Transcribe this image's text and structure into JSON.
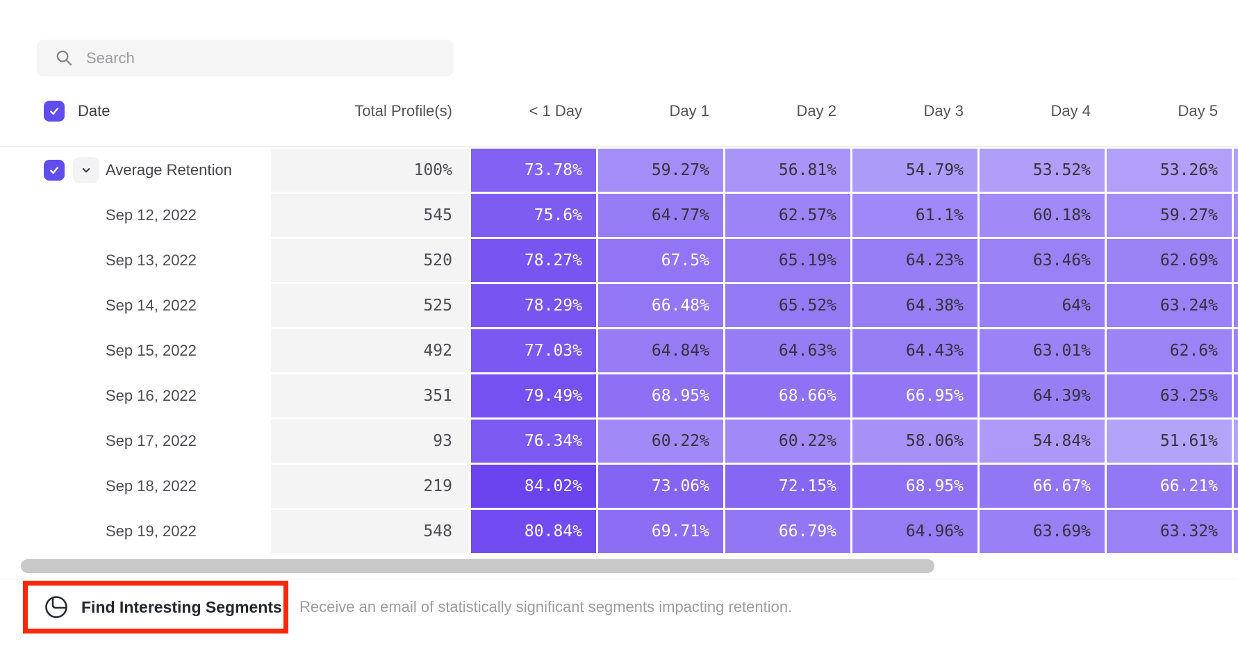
{
  "search": {
    "placeholder": "Search"
  },
  "table": {
    "date_header": "Date",
    "columns": [
      "Total Profile(s)",
      "< 1 Day",
      "Day 1",
      "Day 2",
      "Day 3",
      "Day 4",
      "Day 5"
    ],
    "rows": [
      {
        "label": "Average Retention",
        "is_average": true,
        "total": "100%",
        "values": [
          73.78,
          59.27,
          56.81,
          54.79,
          53.52,
          53.26
        ]
      },
      {
        "label": "Sep 12, 2022",
        "is_average": false,
        "total": "545",
        "values": [
          75.6,
          64.77,
          62.57,
          61.1,
          60.18,
          59.27
        ]
      },
      {
        "label": "Sep 13, 2022",
        "is_average": false,
        "total": "520",
        "values": [
          78.27,
          67.5,
          65.19,
          64.23,
          63.46,
          62.69
        ]
      },
      {
        "label": "Sep 14, 2022",
        "is_average": false,
        "total": "525",
        "values": [
          78.29,
          66.48,
          65.52,
          64.38,
          64,
          63.24
        ]
      },
      {
        "label": "Sep 15, 2022",
        "is_average": false,
        "total": "492",
        "values": [
          77.03,
          64.84,
          64.63,
          64.43,
          63.01,
          62.6
        ]
      },
      {
        "label": "Sep 16, 2022",
        "is_average": false,
        "total": "351",
        "values": [
          79.49,
          68.95,
          68.66,
          66.95,
          64.39,
          63.25
        ]
      },
      {
        "label": "Sep 17, 2022",
        "is_average": false,
        "total": "93",
        "values": [
          76.34,
          60.22,
          60.22,
          58.06,
          54.84,
          51.61
        ]
      },
      {
        "label": "Sep 18, 2022",
        "is_average": false,
        "total": "219",
        "values": [
          84.02,
          73.06,
          72.15,
          68.95,
          66.67,
          66.21
        ]
      },
      {
        "label": "Sep 19, 2022",
        "is_average": false,
        "total": "548",
        "values": [
          80.84,
          69.71,
          66.79,
          64.96,
          63.69,
          63.32
        ]
      }
    ]
  },
  "footer": {
    "button_label": "Find Interesting Segments",
    "description": "Receive an email of statistically significant segments impacting retention."
  },
  "icons": {
    "search": "magnifier",
    "select_checkbox": "check",
    "expand": "chevron-down",
    "find_segments": "circle-segment"
  },
  "colors": {
    "accent_purple": "#5f4dee",
    "cell_scale_light": "#b8a9fa",
    "cell_scale_dark": "#6940ef",
    "cell_scale_min_value": 50,
    "cell_scale_max_value": 85,
    "white_text_min_value": 66,
    "cell_dark_text": "#343241",
    "total_cell_bg": "#f4f4f5",
    "highlight_red": "#fa2808",
    "scrollbar": "#c8c8c8"
  }
}
